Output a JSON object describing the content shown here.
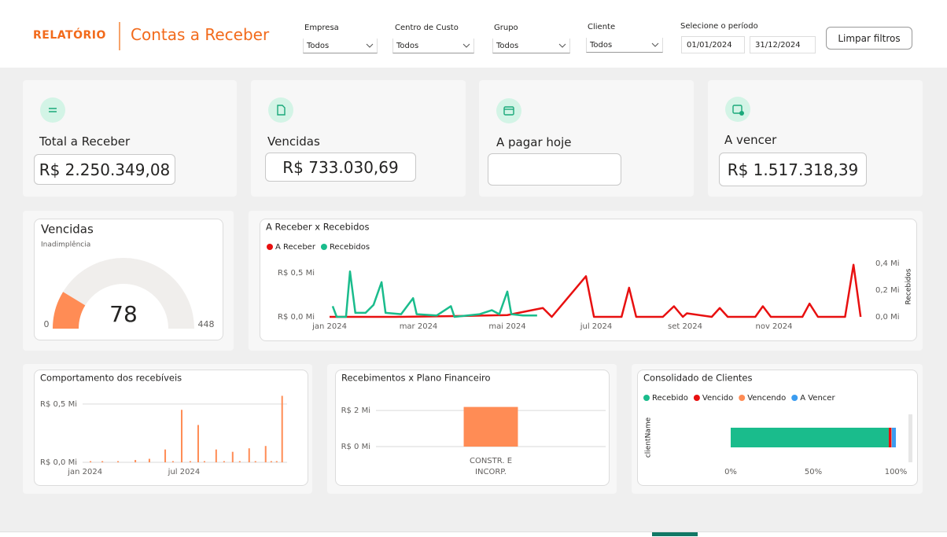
{
  "header": {
    "brand": "RELATÓRIO",
    "title": "Contas a Receber"
  },
  "filters": [
    {
      "label": "Empresa",
      "value": "Todos"
    },
    {
      "label": "Centro de Custo",
      "value": "Todos"
    },
    {
      "label": "Grupo",
      "value": "Todos"
    },
    {
      "label": "Cliente",
      "value": "Todos"
    }
  ],
  "period": {
    "label": "Selecione o período",
    "start": "01/01/2024",
    "end": "31/12/2024"
  },
  "clear_button": "Limpar filtros",
  "kpis": [
    {
      "label": "Total a Receber",
      "value": "R$ 2.250.349,08"
    },
    {
      "label": "Vencidas",
      "value": "R$ 733.030,69"
    },
    {
      "label": "A pagar hoje"
    },
    {
      "label": "A vencer",
      "value": "R$ 1.517.318,39"
    }
  ],
  "chart_data": [
    {
      "type": "gauge",
      "title": "Vencidas",
      "subtitle": "Inadimplência",
      "value": 78,
      "min": 0,
      "max": 448,
      "color": "#ff8c55",
      "track_color": "#f0eeec"
    },
    {
      "type": "line",
      "title": "A Receber x Recebidos",
      "legend": "top-left",
      "series": [
        {
          "name": "A Receber",
          "color": "#e81010",
          "x": [
            0,
            1.5,
            3.0,
            4.0,
            4.8,
            5.0,
            5.77,
            5.95,
            6.57,
            6.74,
            6.9,
            7.5,
            7.75,
            7.95,
            8.04,
            8.6,
            8.78,
            8.96,
            9.58,
            9.75,
            9.93,
            10.64,
            10.8,
            10.99,
            11.6,
            11.79,
            11.95
          ],
          "values": [
            0,
            0,
            0.01,
            0.02,
            0.1,
            0,
            0.46,
            0,
            0,
            0.33,
            0,
            0,
            0.12,
            0,
            0.04,
            0,
            0.1,
            0,
            0,
            0.12,
            0,
            0,
            0.15,
            0,
            0,
            0.59,
            0
          ]
        },
        {
          "name": "Recebidos",
          "color": "#1abc8c",
          "axis": "y2",
          "x": [
            0.07,
            0.16,
            0.37,
            0.46,
            0.58,
            0.81,
            0.99,
            1.17,
            1.26,
            1.61,
            1.88,
            1.96,
            2.41,
            2.73,
            2.81,
            3.38,
            3.65,
            3.82,
            4.0,
            4.09,
            4.35,
            4.67
          ],
          "values": [
            0.08,
            0,
            0,
            0.34,
            0.03,
            0.03,
            0.09,
            0.26,
            0.03,
            0.02,
            0.14,
            0.02,
            0.01,
            0.08,
            0,
            0.02,
            0.05,
            0.02,
            0.19,
            0.02,
            0.01,
            0.01
          ]
        }
      ],
      "xlim": [
        0,
        12
      ],
      "xticks": [
        {
          "value": 0,
          "label": "jan 2024"
        },
        {
          "value": 2,
          "label": "mar 2024"
        },
        {
          "value": 4,
          "label": "mai 2024"
        },
        {
          "value": 6,
          "label": "jul 2024"
        },
        {
          "value": 8,
          "label": "set 2024"
        },
        {
          "value": 10,
          "label": "nov 2024"
        }
      ],
      "ylim": [
        0,
        0.65
      ],
      "yticks": [
        {
          "value": 0,
          "label": "R$ 0,0 Mi"
        },
        {
          "value": 0.5,
          "label": "R$ 0,5 Mi"
        }
      ],
      "y2lim": [
        0,
        0.43
      ],
      "y2ticks": [
        {
          "value": 0,
          "label": "0,0 Mi"
        },
        {
          "value": 0.2,
          "label": "0,2 Mi"
        },
        {
          "value": 0.4,
          "label": "0,4 Mi"
        }
      ],
      "y2_label": "Recebidos"
    },
    {
      "type": "bar",
      "title": "Comportamento dos recebíveis",
      "color": "#ff8c55",
      "grid": true,
      "x": [
        0.33,
        1.05,
        2.0,
        3.05,
        3.9,
        4.86,
        5.33,
        5.86,
        6.38,
        6.86,
        7.24,
        7.95,
        8.43,
        8.95,
        9.38,
        9.95,
        10.33,
        10.95,
        11.29,
        11.62,
        11.95
      ],
      "values": [
        0.01,
        0.01,
        0.01,
        0.02,
        0.03,
        0.11,
        0.01,
        0.45,
        0.01,
        0.32,
        0.01,
        0.11,
        0.01,
        0.09,
        0.01,
        0.12,
        0.01,
        0.14,
        0.01,
        0.01,
        0.57
      ],
      "xlim": [
        -0.15,
        12.25
      ],
      "xticks": [
        {
          "value": 0,
          "label": "jan 2024"
        },
        {
          "value": 6,
          "label": "jul 2024"
        }
      ],
      "ylim": [
        0,
        0.6
      ],
      "yticks": [
        {
          "value": 0,
          "label": "R$ 0,0 Mi"
        },
        {
          "value": 0.5,
          "label": "R$ 0,5 Mi"
        }
      ]
    },
    {
      "type": "bar",
      "title": "Recebimentos x Plano Financeiro",
      "color": "#ff8c55",
      "grid": true,
      "categories": [
        "CONSTR. E INCORP."
      ],
      "values": [
        2.2
      ],
      "ylim": [
        0,
        2.4
      ],
      "yticks": [
        {
          "value": 0,
          "label": "R$ 0 Mi"
        },
        {
          "value": 2,
          "label": "R$ 2 Mi"
        }
      ]
    },
    {
      "type": "stacked_bar_100",
      "orientation": "horizontal",
      "title": "Consolidado de Clientes",
      "legend": "top-left",
      "y_label": "clientName",
      "categories": [
        null
      ],
      "series": [
        {
          "name": "Recebido",
          "color": "#1abc8c",
          "values": [
            95.7
          ]
        },
        {
          "name": "Vencido",
          "color": "#e81010",
          "values": [
            1.6
          ]
        },
        {
          "name": "Vencendo",
          "color": "#ff8c55",
          "values": [
            0.2
          ]
        },
        {
          "name": "A Vencer",
          "color": "#3b9cf0",
          "values": [
            2.5
          ]
        }
      ],
      "xlim": [
        0,
        100
      ],
      "xticks": [
        {
          "value": 0,
          "label": "0%"
        },
        {
          "value": 50,
          "label": "50%"
        },
        {
          "value": 100,
          "label": "100%"
        }
      ]
    }
  ]
}
